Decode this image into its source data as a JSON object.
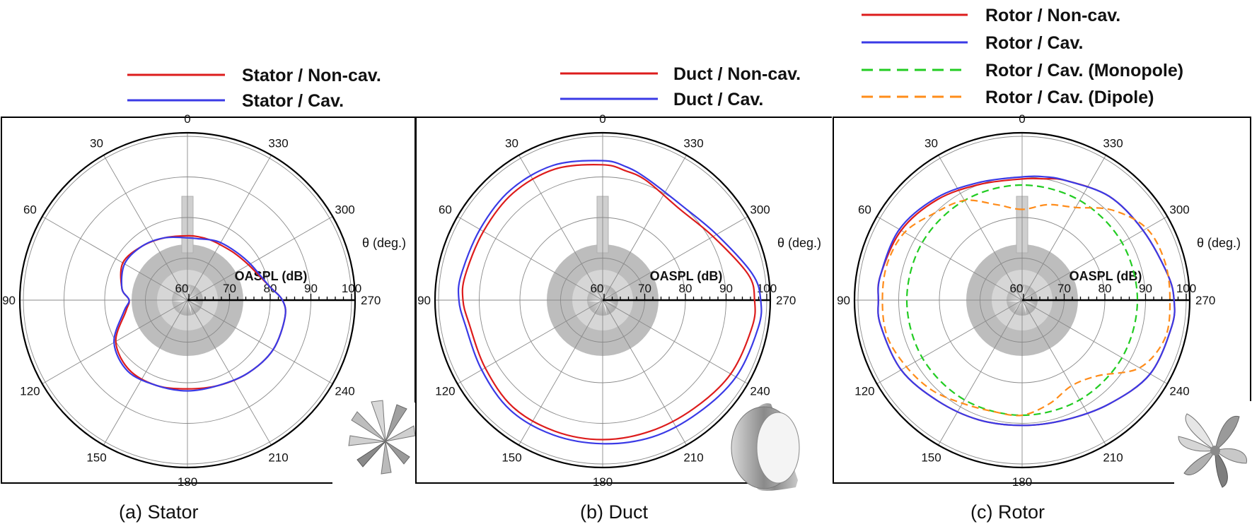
{
  "chart_data": [
    {
      "type": "polar-line",
      "caption": "(a)  Stator",
      "angle_axis_label": "θ (deg.)",
      "radial_axis_label": "OASPL (dB)",
      "angle_ticks": [
        "0",
        "30",
        "60",
        "90",
        "120",
        "150",
        "180",
        "210",
        "240",
        "270",
        "300",
        "330"
      ],
      "radial_ticks": [
        "60",
        "70",
        "80",
        "90",
        "100"
      ],
      "radial_range": [
        60,
        100
      ],
      "legend": "above",
      "series": [
        {
          "name": "Stator / Non-cav.",
          "color": "#dd1c1c",
          "dash": "solid",
          "theta": [
            0,
            20,
            40,
            60,
            80,
            90,
            100,
            120,
            140,
            160,
            180,
            200,
            220,
            240,
            260,
            270,
            280,
            300,
            315,
            330,
            340,
            350
          ],
          "oaspl": [
            75.5,
            76,
            77,
            78,
            76,
            74,
            75,
            80,
            82,
            82,
            81.5,
            82,
            83,
            84,
            84,
            83,
            80,
            77,
            76,
            75.5,
            75.5,
            75.5
          ]
        },
        {
          "name": "Stator / Cav.",
          "color": "#3a3ae6",
          "dash": "solid",
          "theta": [
            0,
            20,
            40,
            60,
            80,
            90,
            100,
            120,
            140,
            160,
            180,
            200,
            220,
            240,
            260,
            270,
            280,
            300,
            315,
            330,
            340,
            350
          ],
          "oaspl": [
            75,
            76,
            77,
            77.5,
            76,
            74,
            75.5,
            80.5,
            82.5,
            82,
            82,
            82,
            83,
            84,
            84,
            83,
            80,
            77.5,
            76.5,
            76,
            75.5,
            75
          ]
        }
      ]
    },
    {
      "type": "polar-line",
      "caption": "(b)  Duct",
      "angle_axis_label": "θ (deg.)",
      "radial_axis_label": "OASPL (dB)",
      "angle_ticks": [
        "0",
        "30",
        "60",
        "90",
        "120",
        "150",
        "180",
        "210",
        "240",
        "270",
        "300",
        "330"
      ],
      "radial_ticks": [
        "60",
        "70",
        "80",
        "90",
        "100"
      ],
      "radial_range": [
        60,
        100
      ],
      "legend": "above",
      "series": [
        {
          "name": "Duct / Non-cav.",
          "color": "#dd1c1c",
          "dash": "solid",
          "theta": [
            0,
            20,
            40,
            60,
            80,
            90,
            100,
            120,
            140,
            160,
            180,
            200,
            220,
            240,
            260,
            270,
            280,
            300,
            320,
            340,
            350
          ],
          "oaspl": [
            93,
            94,
            94,
            93.5,
            94,
            94,
            93,
            93,
            94,
            94,
            94,
            94,
            94.5,
            96,
            97,
            97,
            96,
            91,
            89,
            91,
            92
          ]
        },
        {
          "name": "Duct / Cav.",
          "color": "#3a3ae6",
          "dash": "solid",
          "theta": [
            0,
            20,
            40,
            60,
            80,
            90,
            100,
            120,
            140,
            160,
            180,
            200,
            220,
            240,
            260,
            270,
            280,
            300,
            320,
            340,
            350
          ],
          "oaspl": [
            94,
            95,
            95,
            94.5,
            95,
            95,
            94,
            94,
            95,
            95,
            95,
            95.5,
            96,
            97.5,
            98.5,
            98.5,
            97,
            92,
            90,
            91.5,
            93
          ]
        }
      ]
    },
    {
      "type": "polar-line",
      "caption": "(c)  Rotor",
      "angle_axis_label": "θ (deg.)",
      "radial_axis_label": "OASPL (dB)",
      "angle_ticks": [
        "0",
        "30",
        "60",
        "90",
        "120",
        "150",
        "180",
        "210",
        "240",
        "270",
        "300",
        "330"
      ],
      "radial_ticks": [
        "60",
        "70",
        "80",
        "90",
        "100"
      ],
      "radial_range": [
        60,
        100
      ],
      "legend": "above",
      "series": [
        {
          "name": "Rotor / Non-cav.",
          "color": "#dd1c1c",
          "dash": "solid",
          "theta": [
            0,
            20,
            40,
            60,
            80,
            90,
            100,
            120,
            140,
            160,
            180,
            200,
            220,
            240,
            260,
            270,
            280,
            300,
            320,
            340,
            350
          ],
          "oaspl": [
            89.5,
            90,
            92,
            94,
            95,
            95,
            95,
            94,
            92,
            91,
            90.5,
            91,
            93,
            96,
            97,
            97,
            96,
            94,
            93,
            91,
            90
          ]
        },
        {
          "name": "Rotor / Cav.",
          "color": "#3a3ae6",
          "dash": "solid",
          "theta": [
            0,
            20,
            40,
            60,
            80,
            90,
            100,
            120,
            140,
            160,
            180,
            200,
            220,
            240,
            260,
            270,
            280,
            300,
            320,
            340,
            350
          ],
          "oaspl": [
            90,
            90.5,
            92.5,
            94.5,
            95,
            95,
            95,
            94,
            92,
            91,
            90.5,
            91,
            93,
            96,
            97,
            97,
            96,
            94,
            93,
            91,
            90.5
          ]
        },
        {
          "name": "Rotor / Cav. (Monopole)",
          "color": "#22cc22",
          "dash": "dashed",
          "theta": [
            0,
            30,
            60,
            90,
            120,
            150,
            180,
            210,
            240,
            270,
            300,
            330
          ],
          "oaspl": [
            88,
            88,
            88,
            88,
            88,
            88,
            88,
            88,
            88,
            88,
            88,
            88
          ]
        },
        {
          "name": "Rotor / Cav. (Dipole)",
          "color": "#ff8c1a",
          "dash": "dashed",
          "theta": [
            0,
            15,
            30,
            45,
            60,
            75,
            90,
            105,
            120,
            135,
            150,
            165,
            180,
            195,
            210,
            225,
            240,
            255,
            270,
            285,
            300,
            315,
            330,
            345
          ],
          "oaspl": [
            82,
            84,
            88,
            90,
            93,
            94,
            94,
            94,
            92.5,
            91,
            89,
            88,
            88,
            86,
            84,
            86,
            93,
            96,
            96,
            96,
            95,
            91,
            86,
            84
          ]
        }
      ]
    }
  ]
}
